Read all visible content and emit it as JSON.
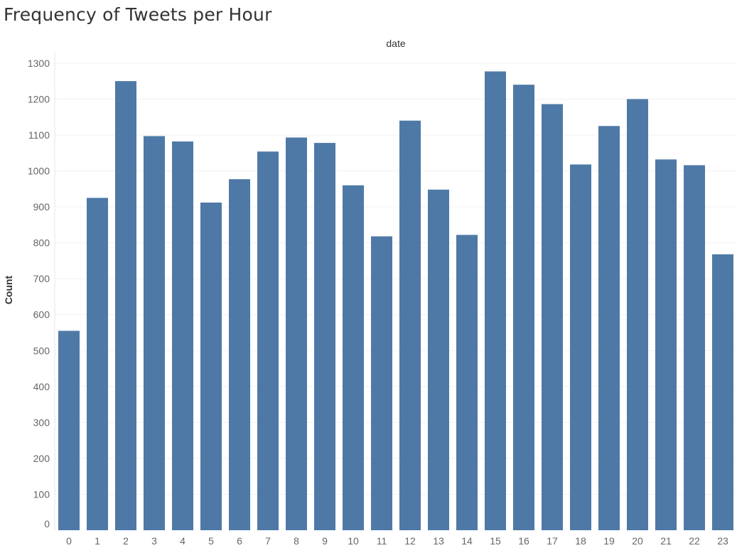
{
  "chart_data": {
    "type": "bar",
    "title": "Frequency of Tweets per Hour",
    "header_label": "date",
    "ylabel": "Count",
    "categories": [
      "0",
      "1",
      "2",
      "3",
      "4",
      "5",
      "6",
      "7",
      "8",
      "9",
      "10",
      "11",
      "12",
      "13",
      "14",
      "15",
      "16",
      "17",
      "18",
      "19",
      "20",
      "21",
      "22",
      "23"
    ],
    "values": [
      555,
      925,
      1250,
      1097,
      1082,
      912,
      977,
      1054,
      1093,
      1078,
      960,
      818,
      1140,
      948,
      822,
      1277,
      1240,
      1186,
      1018,
      1125,
      1200,
      1032,
      1016,
      768
    ],
    "yticks": [
      0,
      100,
      200,
      300,
      400,
      500,
      600,
      700,
      800,
      900,
      1000,
      1100,
      1200,
      1300
    ],
    "ylim": [
      0,
      1330
    ],
    "grid": true,
    "bar_color": "#4e79a7"
  }
}
